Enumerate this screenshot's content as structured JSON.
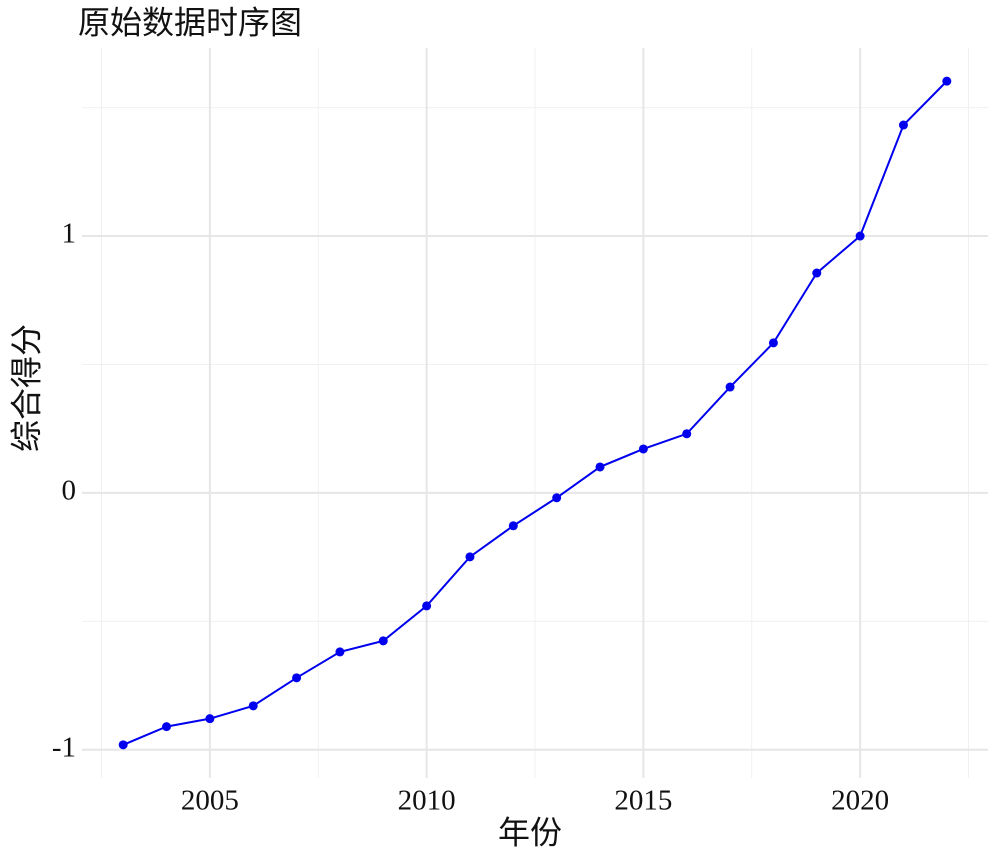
{
  "chart_data": {
    "type": "line",
    "title": "原始数据时序图",
    "x_label": "年份",
    "y_label": "综合得分",
    "x": [
      2003,
      2004,
      2005,
      2006,
      2007,
      2008,
      2009,
      2010,
      2011,
      2012,
      2013,
      2014,
      2015,
      2016,
      2017,
      2018,
      2019,
      2020,
      2021,
      2022
    ],
    "series": [
      {
        "color": "#0000ee",
        "values": [
          -0.981,
          -0.91,
          -0.879,
          -0.829,
          -0.72,
          -0.619,
          -0.576,
          -0.44,
          -0.249,
          -0.128,
          -0.019,
          0.101,
          0.171,
          0.23,
          0.412,
          0.584,
          0.856,
          1.0,
          1.432,
          1.603
        ]
      }
    ],
    "xlim": [
      2002.05,
      2022.95
    ],
    "ylim": [
      -1.11,
      1.732
    ],
    "xticks": [
      2005,
      2010,
      2015,
      2020
    ],
    "yticks": [
      -1,
      0,
      1
    ],
    "x_minor_ticks": [
      2002.5,
      2007.5,
      2012.5,
      2017.5,
      2022.5
    ],
    "y_minor_ticks": [
      -0.5,
      0.5,
      1.5
    ],
    "grid": true
  }
}
